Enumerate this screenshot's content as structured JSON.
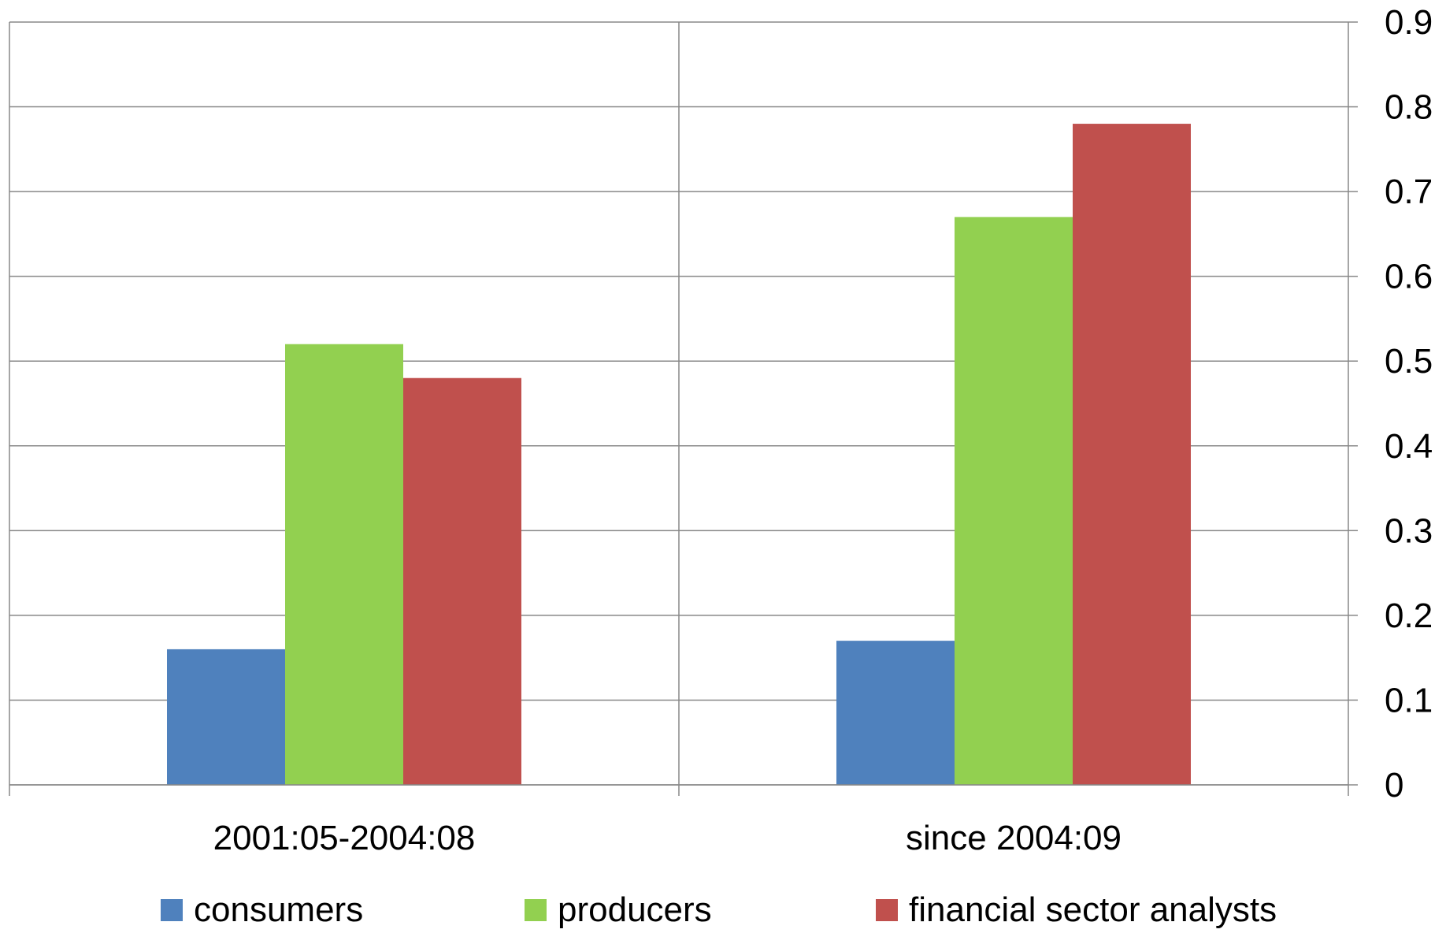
{
  "chart_data": {
    "type": "bar",
    "categories": [
      "2001:05-2004:08",
      "since 2004:09"
    ],
    "series": [
      {
        "name": "consumers",
        "color": "#4F81BD",
        "values": [
          0.16,
          0.17
        ]
      },
      {
        "name": "producers",
        "color": "#92D050",
        "values": [
          0.52,
          0.67
        ]
      },
      {
        "name": "financial sector analysts",
        "color": "#C0504D",
        "values": [
          0.48,
          0.78
        ]
      }
    ],
    "yticks": [
      "0",
      "0.1",
      "0.2",
      "0.3",
      "0.4",
      "0.5",
      "0.6",
      "0.7",
      "0.8",
      "0.9"
    ],
    "ylim": [
      0,
      0.9
    ],
    "y_axis_side": "right",
    "grid": true,
    "legend_position": "bottom"
  }
}
